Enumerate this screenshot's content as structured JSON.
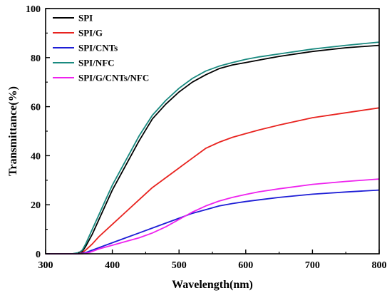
{
  "chart_data": {
    "type": "line",
    "title": "",
    "xlabel": "Wavelength(nm)",
    "ylabel": "Transmittance(%)",
    "xlim": [
      300,
      800
    ],
    "ylim": [
      0,
      100
    ],
    "xticks": [
      300,
      400,
      500,
      600,
      700,
      800
    ],
    "yticks": [
      0,
      20,
      40,
      60,
      80,
      100
    ],
    "grid": false,
    "legend_position": "top-left",
    "series": [
      {
        "name": "SPI",
        "color": "#000000",
        "x": [
          300,
          340,
          350,
          355,
          360,
          370,
          380,
          390,
          400,
          420,
          440,
          460,
          480,
          500,
          520,
          540,
          560,
          580,
          600,
          620,
          650,
          700,
          750,
          800
        ],
        "y": [
          0,
          0,
          0.3,
          1,
          3,
          8,
          14,
          20,
          26,
          36,
          46,
          55,
          61,
          66,
          70,
          73,
          75.5,
          77,
          78,
          79,
          80.5,
          82.5,
          84,
          85
        ]
      },
      {
        "name": "SPI/G",
        "color": "#e8231f",
        "x": [
          300,
          345,
          355,
          360,
          370,
          380,
          400,
          420,
          440,
          460,
          480,
          500,
          520,
          540,
          560,
          580,
          600,
          620,
          650,
          700,
          750,
          800
        ],
        "y": [
          0,
          0,
          0.5,
          1.5,
          4,
          7,
          12,
          17,
          22,
          27,
          31,
          35,
          39,
          43,
          45.5,
          47.5,
          49,
          50.5,
          52.5,
          55.5,
          57.5,
          59.5
        ]
      },
      {
        "name": "SPI/CNTs",
        "color": "#1e1ed6",
        "x": [
          300,
          350,
          360,
          370,
          380,
          400,
          420,
          440,
          460,
          480,
          500,
          520,
          540,
          560,
          580,
          600,
          620,
          650,
          700,
          750,
          800
        ],
        "y": [
          0,
          0,
          0.5,
          1.5,
          2.5,
          4.5,
          6.5,
          8.5,
          10.5,
          12.5,
          14.5,
          16.5,
          18,
          19.5,
          20.5,
          21.3,
          22,
          23,
          24.3,
          25.2,
          26
        ]
      },
      {
        "name": "SPI/NFC",
        "color": "#1a8a80",
        "x": [
          300,
          340,
          350,
          355,
          360,
          370,
          380,
          390,
          400,
          420,
          440,
          460,
          480,
          500,
          520,
          540,
          560,
          580,
          600,
          620,
          650,
          700,
          750,
          800
        ],
        "y": [
          0,
          0,
          0.5,
          1.5,
          4,
          10,
          16,
          22,
          28,
          38,
          48,
          56.5,
          62.5,
          67.5,
          71.5,
          74.5,
          76.5,
          78,
          79.3,
          80.3,
          81.5,
          83.5,
          85,
          86.3
        ]
      },
      {
        "name": "SPI/G/CNTs/NFC",
        "color": "#ee22ee",
        "x": [
          300,
          355,
          365,
          370,
          380,
          400,
          420,
          440,
          460,
          480,
          500,
          520,
          540,
          560,
          580,
          600,
          620,
          650,
          700,
          750,
          800
        ],
        "y": [
          0,
          0,
          0.5,
          1,
          2,
          3.5,
          5,
          6.5,
          8.5,
          11,
          14,
          17,
          19.5,
          21.5,
          23,
          24.2,
          25.3,
          26.5,
          28.3,
          29.5,
          30.5
        ]
      }
    ]
  }
}
